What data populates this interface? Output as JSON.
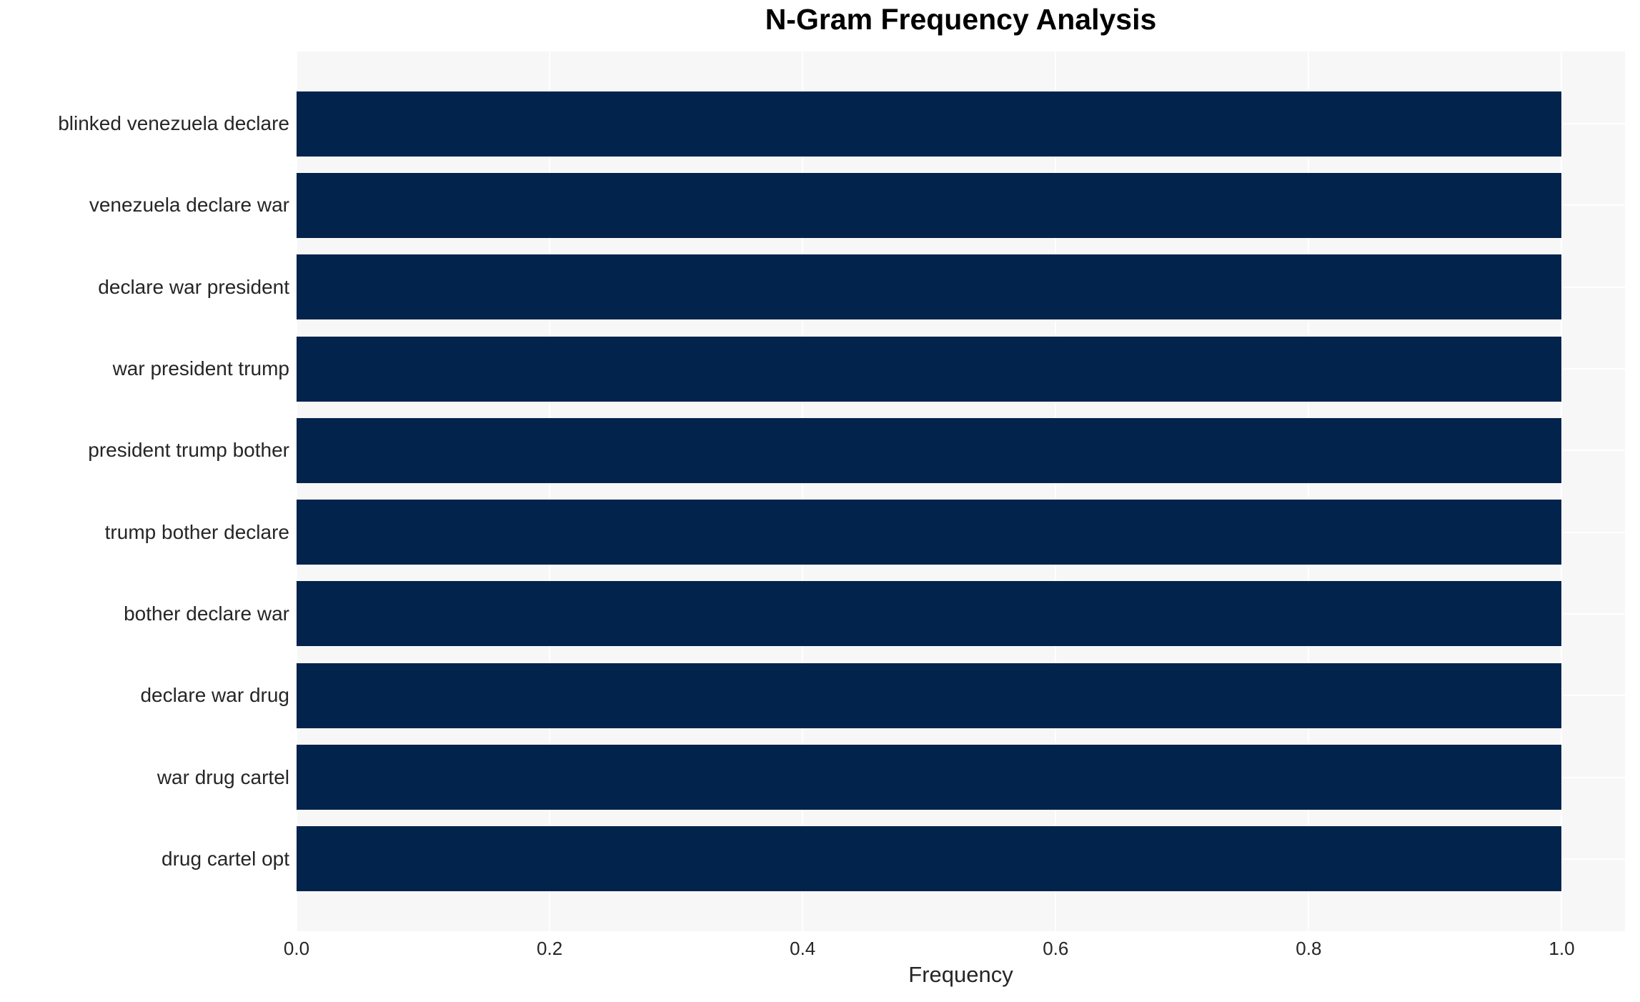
{
  "chart_data": {
    "type": "bar",
    "orientation": "horizontal",
    "title": "N-Gram Frequency Analysis",
    "xlabel": "Frequency",
    "ylabel": "",
    "categories": [
      "blinked venezuela declare",
      "venezuela declare war",
      "declare war president",
      "war president trump",
      "president trump bother",
      "trump bother declare",
      "bother declare war",
      "declare war drug",
      "war drug cartel",
      "drug cartel opt"
    ],
    "values": [
      1.0,
      1.0,
      1.0,
      1.0,
      1.0,
      1.0,
      1.0,
      1.0,
      1.0,
      1.0
    ],
    "xticks": [
      {
        "value": 0.0,
        "label": "0.0"
      },
      {
        "value": 0.2,
        "label": "0.2"
      },
      {
        "value": 0.4,
        "label": "0.4"
      },
      {
        "value": 0.6,
        "label": "0.6"
      },
      {
        "value": 0.8,
        "label": "0.8"
      },
      {
        "value": 1.0,
        "label": "1.0"
      }
    ],
    "xlim": [
      0,
      1.05
    ],
    "grid": true,
    "legend": false,
    "colors": {
      "bar": "#02234c",
      "plot_background": "#f7f7f7",
      "grid_line": "#ffffff",
      "title_text": "#000000",
      "tick_text": "#262626"
    }
  }
}
